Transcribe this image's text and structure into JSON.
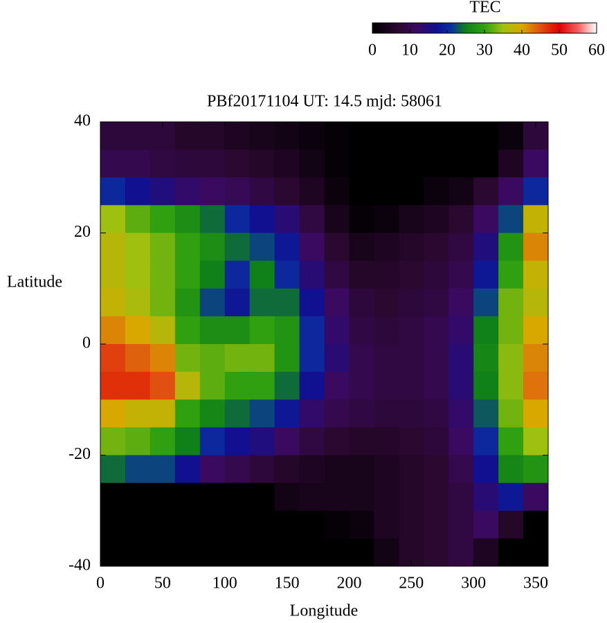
{
  "chart_data": {
    "type": "heatmap",
    "title": "PBf20171104  UT: 14.5  mjd: 58061",
    "x_label": "Longitude",
    "y_label": "Latitude",
    "x": [
      10,
      30,
      50,
      70,
      90,
      110,
      130,
      150,
      170,
      190,
      210,
      230,
      250,
      270,
      290,
      310,
      330,
      350
    ],
    "y": [
      37.5,
      32.5,
      27.5,
      22.5,
      17.5,
      12.5,
      7.5,
      2.5,
      -2.5,
      -7.5,
      -12.5,
      -17.5,
      -22.5,
      -27.5,
      -32.5,
      -37.5
    ],
    "values": [
      [
        8,
        8,
        8,
        6,
        6,
        5,
        4,
        3,
        2,
        1,
        0,
        0,
        0,
        0,
        0,
        0,
        2,
        8
      ],
      [
        10,
        10,
        9,
        8,
        8,
        7,
        6,
        5,
        3,
        1,
        0,
        0,
        0,
        0,
        0,
        0,
        5,
        12
      ],
      [
        20,
        17,
        15,
        13,
        12,
        11,
        9,
        7,
        5,
        2,
        0,
        0,
        0,
        2,
        3,
        7,
        12,
        20
      ],
      [
        35,
        32,
        30,
        27,
        24,
        20,
        17,
        14,
        9,
        4,
        1,
        2,
        4,
        5,
        7,
        12,
        22,
        38
      ],
      [
        37,
        35,
        33,
        30,
        27,
        24,
        22,
        18,
        12,
        7,
        4,
        5,
        6,
        7,
        9,
        15,
        28,
        42
      ],
      [
        37,
        35,
        33,
        30,
        25,
        20,
        25,
        20,
        14,
        9,
        6,
        6,
        7,
        8,
        10,
        18,
        30,
        38
      ],
      [
        38,
        36,
        33,
        28,
        22,
        18,
        24,
        24,
        17,
        12,
        8,
        7,
        8,
        9,
        12,
        22,
        33,
        37
      ],
      [
        42,
        40,
        37,
        30,
        27,
        27,
        30,
        28,
        20,
        13,
        9,
        8,
        9,
        10,
        13,
        25,
        33,
        40
      ],
      [
        46,
        44,
        42,
        33,
        32,
        33,
        33,
        28,
        20,
        14,
        10,
        9,
        9,
        10,
        14,
        26,
        34,
        42
      ],
      [
        47,
        47,
        45,
        37,
        32,
        30,
        30,
        24,
        17,
        12,
        10,
        9,
        9,
        10,
        14,
        25,
        34,
        43
      ],
      [
        40,
        38,
        38,
        30,
        26,
        24,
        22,
        18,
        13,
        10,
        9,
        8,
        8,
        9,
        13,
        23,
        33,
        40
      ],
      [
        33,
        32,
        30,
        25,
        20,
        17,
        15,
        12,
        9,
        7,
        6,
        6,
        7,
        8,
        12,
        20,
        30,
        35
      ],
      [
        24,
        22,
        22,
        17,
        12,
        10,
        8,
        6,
        5,
        4,
        4,
        5,
        6,
        7,
        10,
        17,
        26,
        28
      ],
      [
        0,
        0,
        0,
        0,
        0,
        0,
        0,
        3,
        4,
        4,
        4,
        5,
        6,
        7,
        9,
        14,
        18,
        12
      ],
      [
        0,
        0,
        0,
        0,
        0,
        0,
        0,
        0,
        0,
        1,
        2,
        5,
        6,
        7,
        9,
        12,
        6,
        0
      ],
      [
        0,
        0,
        0,
        0,
        0,
        0,
        0,
        0,
        0,
        0,
        0,
        3,
        6,
        7,
        9,
        5,
        0,
        0
      ]
    ],
    "xlim": [
      0,
      360
    ],
    "ylim": [
      -40,
      40
    ],
    "xticks": [
      0,
      50,
      100,
      150,
      200,
      250,
      300,
      350
    ],
    "yticks": [
      -40,
      -20,
      0,
      20,
      40
    ],
    "colorbar": {
      "label": "TEC",
      "zlim": [
        0,
        60
      ],
      "zticks": [
        0,
        10,
        20,
        30,
        40,
        50,
        60
      ],
      "colorscale": [
        [
          0,
          "#000000"
        ],
        [
          7,
          "#2a0830"
        ],
        [
          12,
          "#3a0a60"
        ],
        [
          17,
          "#101090"
        ],
        [
          21,
          "#0a30a0"
        ],
        [
          25,
          "#108018"
        ],
        [
          30,
          "#30a010"
        ],
        [
          35,
          "#a0c010"
        ],
        [
          40,
          "#d8a800"
        ],
        [
          45,
          "#e05010"
        ],
        [
          50,
          "#e00000"
        ],
        [
          55,
          "#f06060"
        ],
        [
          60,
          "#ffffff"
        ]
      ]
    }
  }
}
